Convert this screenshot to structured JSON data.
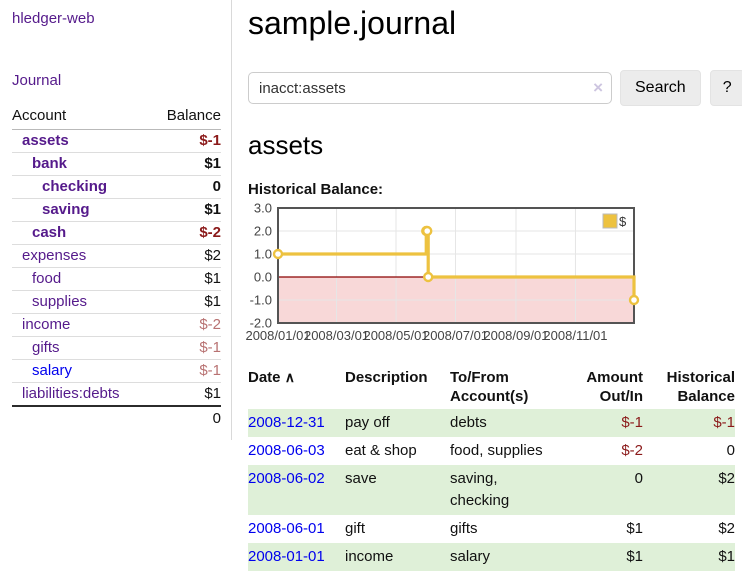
{
  "app": {
    "brand": "hledger-web",
    "nav": {
      "journal": "Journal"
    }
  },
  "sidebar_accounts": {
    "headers": [
      "Account",
      "Balance"
    ],
    "rows": [
      {
        "name": "assets",
        "balance": "$-1",
        "depth": 0,
        "bold": true,
        "link_style": "visited",
        "balance_style": "neg"
      },
      {
        "name": "bank",
        "balance": "$1",
        "depth": 1,
        "bold": true,
        "link_style": "visited",
        "balance_style": "plain"
      },
      {
        "name": "checking",
        "balance": "0",
        "depth": 2,
        "bold": true,
        "link_style": "visited",
        "balance_style": "plain"
      },
      {
        "name": "saving",
        "balance": "$1",
        "depth": 2,
        "bold": true,
        "link_style": "visited",
        "balance_style": "plain"
      },
      {
        "name": "cash",
        "balance": "$-2",
        "depth": 1,
        "bold": true,
        "link_style": "visited",
        "balance_style": "neg"
      },
      {
        "name": "expenses",
        "balance": "$2",
        "depth": 0,
        "bold": false,
        "link_style": "visited",
        "balance_style": "plain"
      },
      {
        "name": "food",
        "balance": "$1",
        "depth": 1,
        "bold": false,
        "link_style": "visited",
        "balance_style": "plain"
      },
      {
        "name": "supplies",
        "balance": "$1",
        "depth": 1,
        "bold": false,
        "link_style": "visited",
        "balance_style": "plain"
      },
      {
        "name": "income",
        "balance": "$-2",
        "depth": 0,
        "bold": false,
        "link_style": "visited",
        "balance_style": "neg-soft"
      },
      {
        "name": "gifts",
        "balance": "$-1",
        "depth": 1,
        "bold": false,
        "link_style": "visited",
        "balance_style": "neg-soft"
      },
      {
        "name": "salary",
        "balance": "$-1",
        "depth": 1,
        "bold": false,
        "link_style": "unvisited",
        "balance_style": "neg-soft"
      },
      {
        "name": "liabilities:debts",
        "balance": "$1",
        "depth": 0,
        "bold": false,
        "link_style": "visited",
        "balance_style": "plain"
      }
    ],
    "total": "0"
  },
  "header": {
    "title": "sample.journal"
  },
  "search": {
    "value": "inacct:assets",
    "clear_icon": "×",
    "button_label": "Search",
    "help_label": "?"
  },
  "account_view": {
    "heading": "assets",
    "chart_title": "Historical Balance:"
  },
  "chart_data": {
    "type": "line",
    "step": true,
    "title": "Historical Balance:",
    "series": [
      {
        "name": "$",
        "color": "#EDC240",
        "x": [
          "2008-01-01",
          "2008-06-01",
          "2008-06-02",
          "2008-06-03",
          "2008-12-31"
        ],
        "values": [
          1,
          2,
          2,
          0,
          -1
        ]
      }
    ],
    "x_tick_labels": [
      "2008/01/01",
      "2008/03/01",
      "2008/05/01",
      "2008/07/01",
      "2008/09/01",
      "2008/11/01"
    ],
    "y_tick_labels": [
      "3.0",
      "2.0",
      "1.0",
      "0.0",
      "-1.0",
      "-2.0"
    ],
    "y_tick_values": [
      3,
      2,
      1,
      0,
      -1,
      -2
    ],
    "xlim": [
      "2008-01-01",
      "2008-12-31"
    ],
    "ylim": [
      -2,
      3
    ],
    "grid": true,
    "legend_position": "top-right",
    "negative_region_fill": "#f8d8d8",
    "zero_line_color": "#8b0000",
    "grid_line_color": "#e6e6e6",
    "border_color": "#545454",
    "tick_label_color": "#444444"
  },
  "register": {
    "columns": [
      "Date",
      "Description",
      "To/From Account(s)",
      "Amount Out/In",
      "Historical Balance"
    ],
    "sort_icon": "∧",
    "rows": [
      {
        "date": "2008-12-31",
        "description": "pay off",
        "accounts": "debts",
        "amount": "$-1",
        "amount_style": "neg",
        "balance": "$-1",
        "balance_style": "neg",
        "striped": true
      },
      {
        "date": "2008-06-03",
        "description": "eat & shop",
        "accounts": "food, supplies",
        "amount": "$-2",
        "amount_style": "neg",
        "balance": "0",
        "balance_style": "plain",
        "striped": false
      },
      {
        "date": "2008-06-02",
        "description": "save",
        "accounts": "saving, checking",
        "amount": "0",
        "amount_style": "plain",
        "balance": "$2",
        "balance_style": "plain",
        "striped": true
      },
      {
        "date": "2008-06-01",
        "description": "gift",
        "accounts": "gifts",
        "amount": "$1",
        "amount_style": "plain",
        "balance": "$2",
        "balance_style": "plain",
        "striped": false
      },
      {
        "date": "2008-01-01",
        "description": "income",
        "accounts": "salary",
        "amount": "$1",
        "amount_style": "plain",
        "balance": "$1",
        "balance_style": "plain",
        "striped": true
      }
    ]
  },
  "colors": {
    "accent_purple": "#551a8b",
    "link_blue": "#0000ee",
    "negative_red": "#8b1a1a",
    "negative_soft_red": "#b87272",
    "stripe_green": "#dff0d8",
    "chart_line_yellow": "#EDC240",
    "chart_negative_fill": "#f8d8d8",
    "chart_zero_line": "#8b0000",
    "button_gray": "#ececec"
  }
}
